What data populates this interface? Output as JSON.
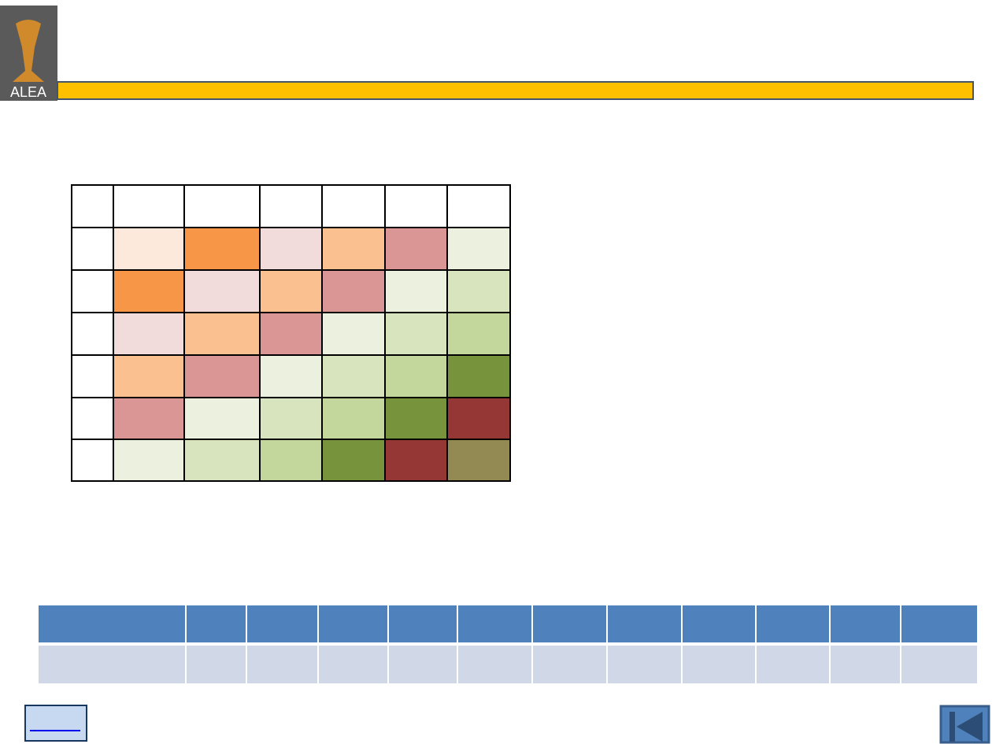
{
  "logo": {
    "text": "ALEA"
  },
  "grid": {
    "rows": [
      [
        "#fde9db",
        "#f79646",
        "#f2dcdb",
        "#fac090",
        "#d99694",
        "#ebf1de"
      ],
      [
        "#f79646",
        "#f2dcdb",
        "#fac090",
        "#d99694",
        "#ebf1de",
        "#d7e4bd"
      ],
      [
        "#f2dcdb",
        "#fac090",
        "#d99694",
        "#ebf1de",
        "#d7e4bd",
        "#c3d69b"
      ],
      [
        "#fac090",
        "#d99694",
        "#ebf1de",
        "#d7e4bd",
        "#c3d69b",
        "#77933c"
      ],
      [
        "#d99694",
        "#ebf1de",
        "#d7e4bd",
        "#c3d69b",
        "#77933c",
        "#953735"
      ],
      [
        "#ebf1de",
        "#d7e4bd",
        "#c3d69b",
        "#77933c",
        "#953735",
        "#938953"
      ]
    ]
  }
}
